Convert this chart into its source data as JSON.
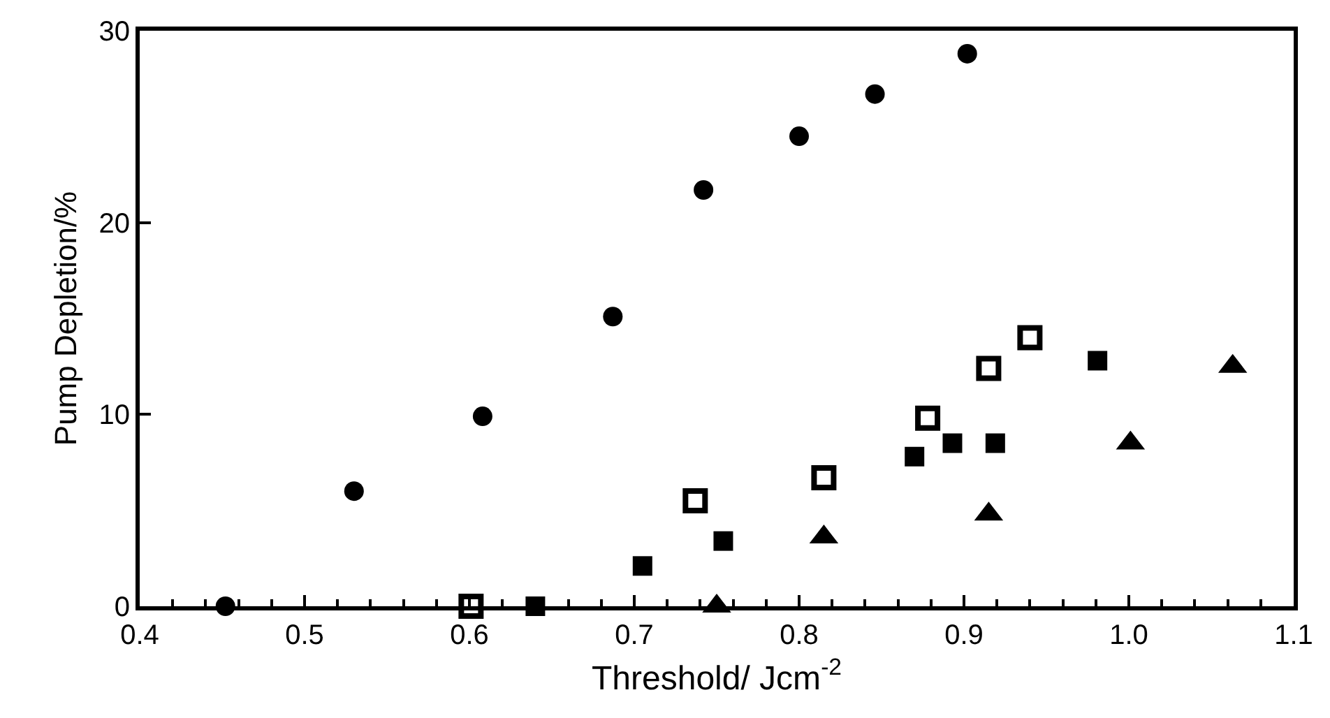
{
  "chart_data": {
    "type": "scatter",
    "xlabel": "Threshold/ Jcm$^{-2}$",
    "ylabel": "Pump Depletion/%",
    "xlim": [
      0.4,
      1.1
    ],
    "ylim": [
      0,
      30
    ],
    "xticks": [
      {
        "value": 0.4,
        "label": "0.4"
      },
      {
        "value": 0.42,
        "label": null
      },
      {
        "value": 0.44,
        "label": null
      },
      {
        "value": 0.46,
        "label": null
      },
      {
        "value": 0.48,
        "label": null
      },
      {
        "value": 0.5,
        "label": "0.5"
      },
      {
        "value": 0.52,
        "label": null
      },
      {
        "value": 0.54,
        "label": null
      },
      {
        "value": 0.56,
        "label": null
      },
      {
        "value": 0.58,
        "label": null
      },
      {
        "value": 0.6,
        "label": "0.6"
      },
      {
        "value": 0.62,
        "label": null
      },
      {
        "value": 0.64,
        "label": null
      },
      {
        "value": 0.66,
        "label": null
      },
      {
        "value": 0.68,
        "label": null
      },
      {
        "value": 0.7,
        "label": "0.7"
      },
      {
        "value": 0.72,
        "label": null
      },
      {
        "value": 0.74,
        "label": null
      },
      {
        "value": 0.76,
        "label": null
      },
      {
        "value": 0.78,
        "label": null
      },
      {
        "value": 0.8,
        "label": "0.8"
      },
      {
        "value": 0.82,
        "label": null
      },
      {
        "value": 0.84,
        "label": null
      },
      {
        "value": 0.86,
        "label": null
      },
      {
        "value": 0.88,
        "label": null
      },
      {
        "value": 0.9,
        "label": "0.9"
      },
      {
        "value": 0.92,
        "label": null
      },
      {
        "value": 0.94,
        "label": null
      },
      {
        "value": 0.96,
        "label": null
      },
      {
        "value": 0.98,
        "label": null
      },
      {
        "value": 1.0,
        "label": "1.0"
      },
      {
        "value": 1.02,
        "label": null
      },
      {
        "value": 1.04,
        "label": null
      },
      {
        "value": 1.06,
        "label": null
      },
      {
        "value": 1.08,
        "label": null
      },
      {
        "value": 1.1,
        "label": "1.1"
      }
    ],
    "yticks": [
      0,
      10,
      20,
      30
    ],
    "series": [
      {
        "color": "#000000",
        "marker": "circle",
        "x": [
          0.452,
          0.53,
          0.608,
          0.687,
          0.742,
          0.8,
          0.846,
          0.902
        ],
        "values": [
          0,
          6,
          9.9,
          15.1,
          21.7,
          24.5,
          26.7,
          28.8
        ]
      },
      {
        "color": "#000000",
        "marker": "square-open",
        "x": [
          0.601,
          0.737,
          0.815,
          0.878,
          0.915,
          0.94
        ],
        "values": [
          0,
          5.5,
          6.7,
          9.8,
          12.4,
          14
        ]
      },
      {
        "color": "#000000",
        "marker": "square",
        "x": [
          0.64,
          0.705,
          0.754,
          0.87,
          0.893,
          0.919,
          0.981
        ],
        "values": [
          0,
          2.1,
          3.4,
          7.8,
          8.5,
          8.5,
          12.8
        ]
      },
      {
        "color": "#000000",
        "marker": "triangle",
        "x": [
          0.75,
          0.815,
          0.915,
          1.001,
          1.063
        ],
        "values": [
          0,
          3.6,
          4.8,
          8.5,
          12.5
        ]
      }
    ]
  }
}
